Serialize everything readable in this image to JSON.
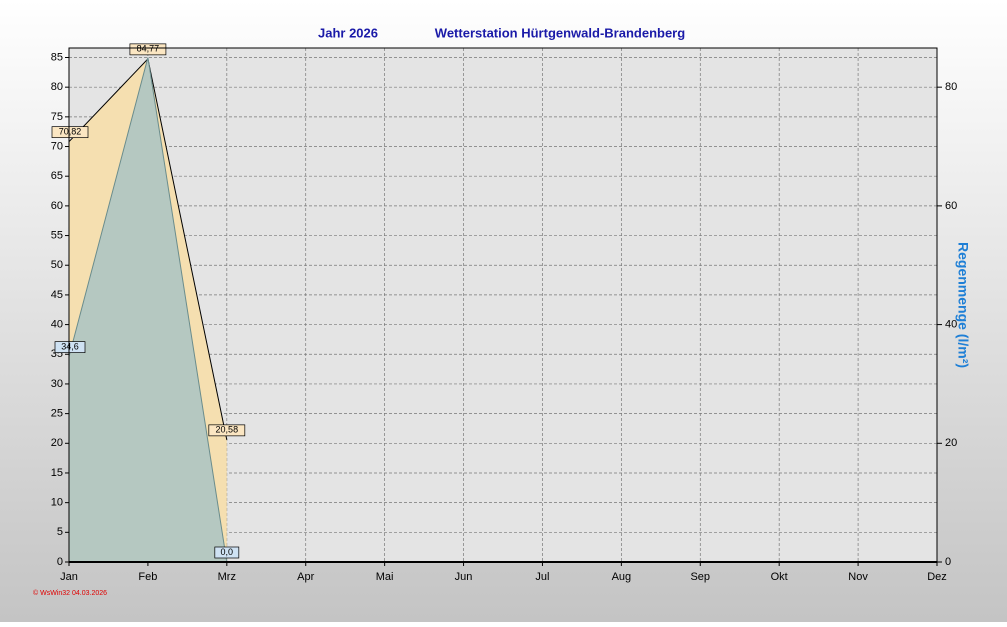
{
  "chart_data": {
    "type": "area",
    "title": "Jahr  2026",
    "subtitle": "Wetterstation Hürtgenwald-Brandenberg",
    "y2label": "Regenmenge  (l/m²)",
    "footer": "© WsWin32  04.03.2026",
    "categories": [
      "Jan",
      "Feb",
      "Mrz",
      "Apr",
      "Mai",
      "Jun",
      "Jul",
      "Aug",
      "Sep",
      "Okt",
      "Nov",
      "Dez"
    ],
    "series": [
      {
        "color": "#f5dfb0",
        "values": [
          70.82,
          84.77,
          20.58,
          null,
          null,
          null,
          null,
          null,
          null,
          null,
          null,
          null
        ],
        "value_labels": [
          "70,82",
          "84,77",
          "20,58",
          null,
          null,
          null,
          null,
          null,
          null,
          null,
          null,
          null
        ]
      },
      {
        "color": "#a9c4c4",
        "axis": "y2",
        "values": [
          34.6,
          85,
          0,
          null,
          null,
          null,
          null,
          null,
          null,
          null,
          null,
          null
        ],
        "value_labels": [
          "34,6",
          null,
          "0,0",
          null,
          null,
          null,
          null,
          null,
          null,
          null,
          null,
          null
        ]
      }
    ],
    "ylim": [
      0,
      86.6
    ],
    "yticks": [
      0,
      5,
      10,
      15,
      20,
      25,
      30,
      35,
      40,
      45,
      50,
      55,
      60,
      65,
      70,
      75,
      80,
      85
    ],
    "y2lim": [
      0,
      86.6
    ],
    "y2ticks": [
      0,
      20,
      40,
      60,
      80
    ],
    "grid": true
  }
}
